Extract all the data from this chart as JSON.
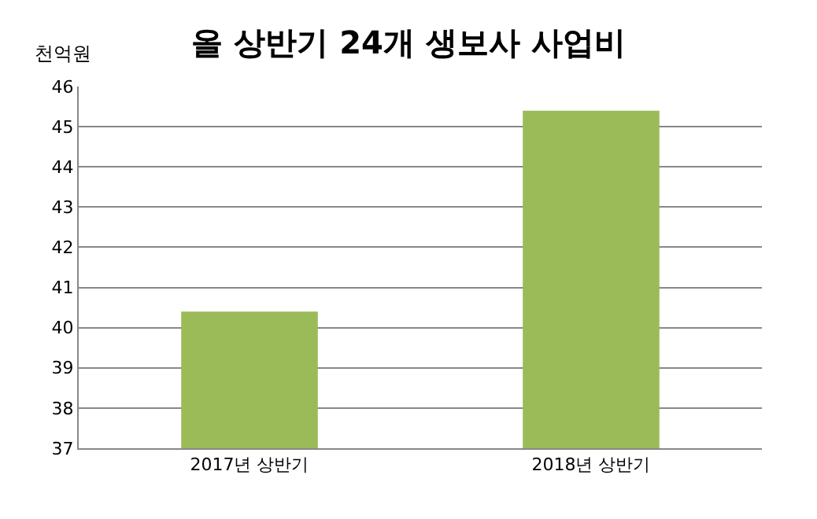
{
  "chart_data": {
    "type": "bar",
    "title": "올 상반기 24개 생보사 사업비",
    "ylabel": "천억원",
    "categories": [
      "2017년 상반기",
      "2018년 상반기"
    ],
    "values": [
      40.4,
      45.4
    ],
    "color": "#9bbb59",
    "ylim": [
      37,
      46
    ],
    "yticks": [
      37,
      38,
      39,
      40,
      41,
      42,
      43,
      44,
      45,
      46
    ],
    "grid": "y"
  }
}
